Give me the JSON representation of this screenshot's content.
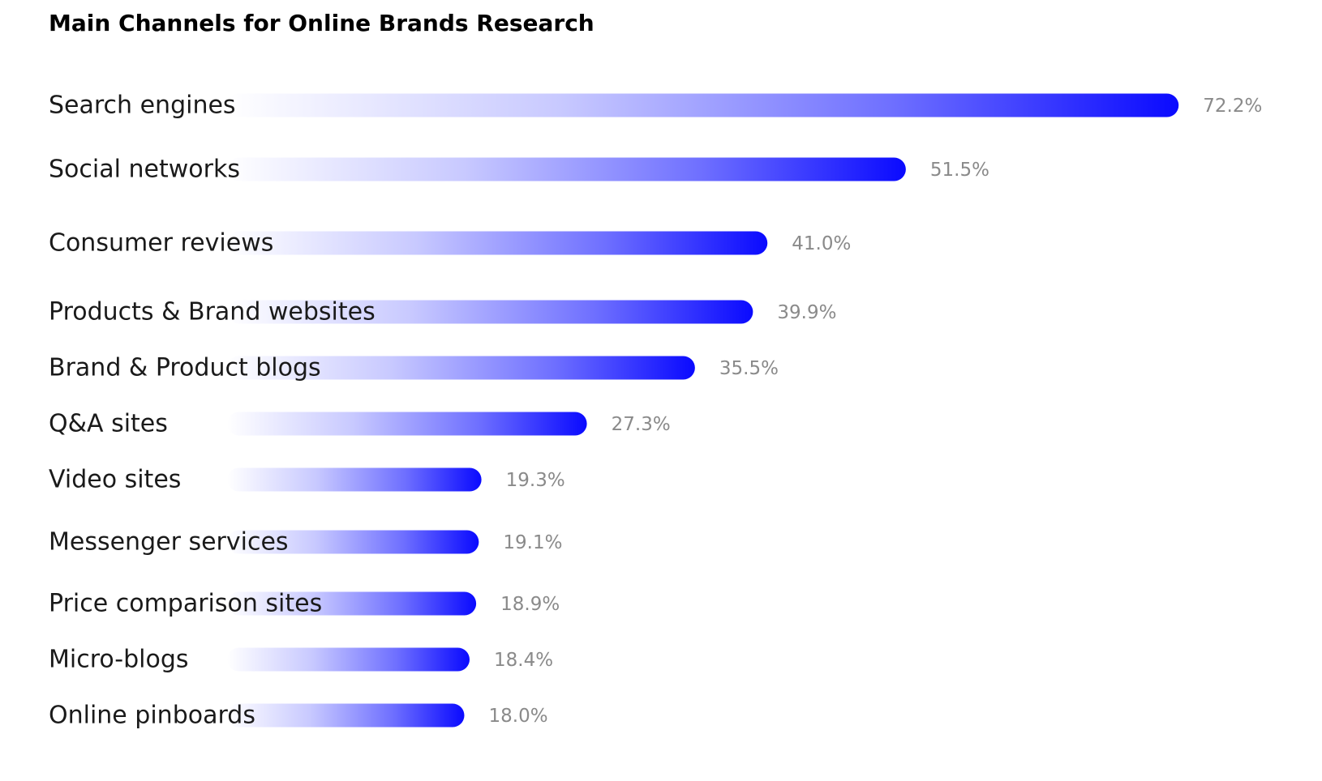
{
  "chart_data": {
    "type": "bar",
    "orientation": "horizontal",
    "title": "Main Channels for Online Brands Research",
    "categories": [
      "Search engines",
      "Social networks",
      "Consumer reviews",
      "Products & Brand websites",
      "Brand & Product blogs",
      "Q&A sites",
      "Video sites",
      "Messenger services",
      "Price comparison sites",
      "Micro-blogs",
      "Online pinboards"
    ],
    "values": [
      72.2,
      51.5,
      41.0,
      39.9,
      35.5,
      27.3,
      19.3,
      19.1,
      18.9,
      18.4,
      18.0
    ],
    "value_labels": [
      "72.2%",
      "51.5%",
      "41.0%",
      "39.9%",
      "35.5%",
      "27.3%",
      "19.3%",
      "19.1%",
      "18.9%",
      "18.4%",
      "18.0%"
    ],
    "unit": "%",
    "grid": false,
    "legend": "none",
    "colors": {
      "bar_end": "#0a0aff",
      "bar_start": "#ffffff",
      "title": "#000000",
      "category_text": "#1a1a1a",
      "value_text": "#8a8a8a"
    }
  }
}
